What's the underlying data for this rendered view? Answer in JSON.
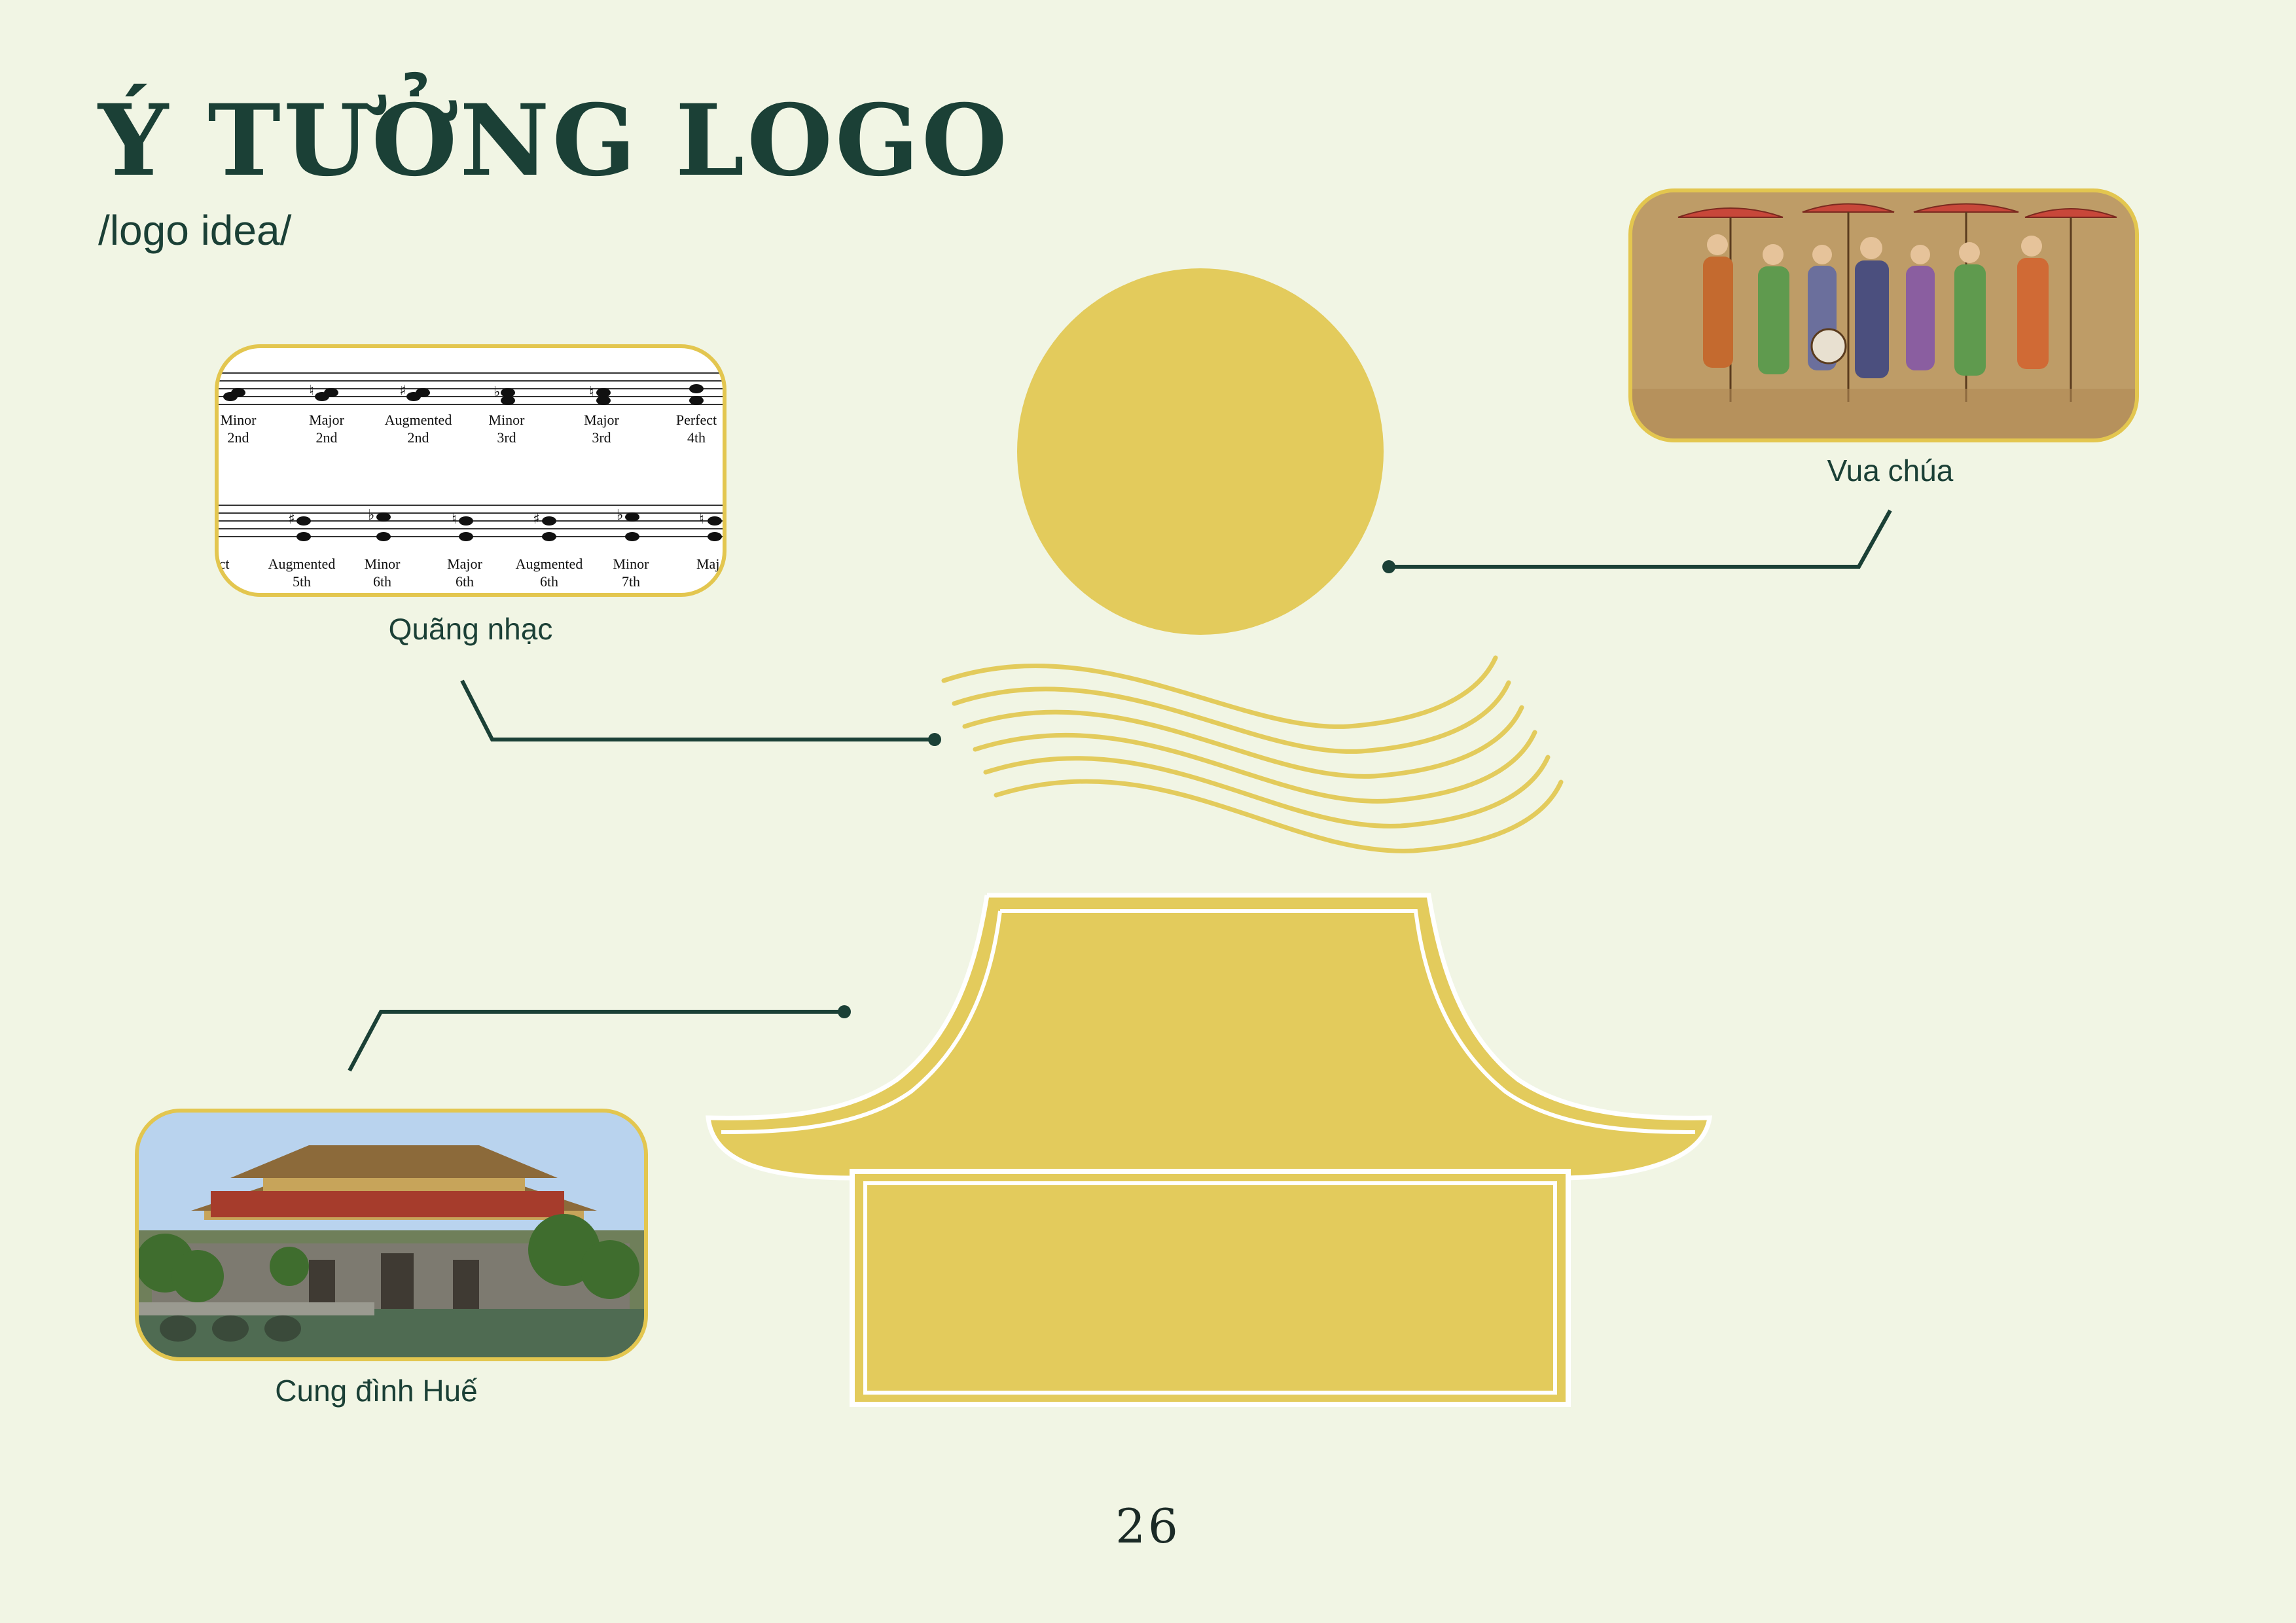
{
  "page": {
    "title": "Ý TƯỞNG LOGO",
    "subtitle": "/logo idea/",
    "page_number": "26"
  },
  "references": [
    {
      "caption": "Quãng nhạc",
      "image": "sheet-music-intervals"
    },
    {
      "caption": "Vua chúa",
      "image": "royal-court-painting"
    },
    {
      "caption": "Cung đình Huế",
      "image": "hue-imperial-citadel-photo"
    }
  ],
  "interval_sheet": {
    "row1": [
      [
        "Minor",
        "2nd"
      ],
      [
        "Major",
        "2nd"
      ],
      [
        "Augmented",
        "2nd"
      ],
      [
        "Minor",
        "3rd"
      ],
      [
        "Major",
        "3rd"
      ],
      [
        "Perfect",
        "4th"
      ]
    ],
    "row2": [
      [
        "fect",
        ""
      ],
      [
        "Augmented",
        "5th"
      ],
      [
        "Minor",
        "6th"
      ],
      [
        "Major",
        "6th"
      ],
      [
        "Augmented",
        "6th"
      ],
      [
        "Minor",
        "7th"
      ],
      [
        "Maj",
        ""
      ]
    ]
  },
  "colors": {
    "background": "#f1f5e4",
    "title": "#1b4036",
    "logo_yellow": "#e3cb5c",
    "connector": "#1b4036"
  }
}
